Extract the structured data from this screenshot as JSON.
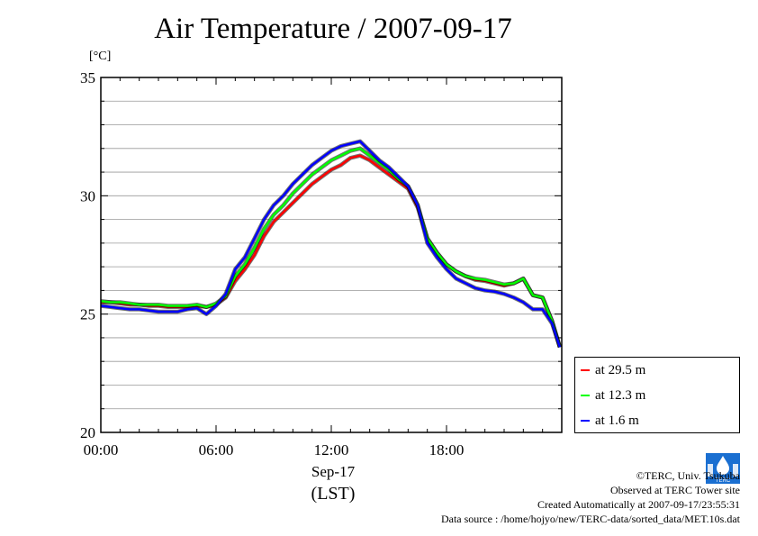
{
  "title": "Air Temperature / 2007-09-17",
  "chart_data": {
    "type": "line",
    "title": "Air Temperature / 2007-09-17",
    "ylabel": "[°C]",
    "xlabel_date": "Sep-17",
    "xlabel_zone": "(LST)",
    "ylim": [
      20,
      35
    ],
    "xlim": [
      0,
      24
    ],
    "y_ticks": [
      "35",
      "30",
      "25",
      "20"
    ],
    "y_tick_values": [
      35,
      30,
      25,
      20
    ],
    "x_ticks": [
      "00:00",
      "06:00",
      "12:00",
      "18:00"
    ],
    "x_tick_values": [
      0,
      6,
      12,
      18
    ],
    "grid": true,
    "legend_position": "bottom-right outside",
    "x_hours": [
      0.0,
      0.5,
      1.0,
      1.5,
      2.0,
      2.5,
      3.0,
      3.5,
      4.0,
      4.5,
      5.0,
      5.5,
      6.0,
      6.5,
      7.0,
      7.5,
      8.0,
      8.5,
      9.0,
      9.5,
      10.0,
      10.5,
      11.0,
      11.5,
      12.0,
      12.5,
      13.0,
      13.5,
      14.0,
      14.5,
      15.0,
      15.5,
      16.0,
      16.5,
      17.0,
      17.5,
      18.0,
      18.5,
      19.0,
      19.5,
      20.0,
      20.5,
      21.0,
      21.5,
      22.0,
      22.5,
      23.0,
      23.5,
      23.9
    ],
    "series": [
      {
        "name": "at 29.5 m",
        "color": "#ff0000",
        "values": [
          25.5,
          25.5,
          25.45,
          25.4,
          25.4,
          25.35,
          25.35,
          25.3,
          25.3,
          25.3,
          25.35,
          25.3,
          25.4,
          25.7,
          26.4,
          26.9,
          27.5,
          28.3,
          28.9,
          29.3,
          29.7,
          30.1,
          30.5,
          30.8,
          31.1,
          31.3,
          31.6,
          31.7,
          31.5,
          31.2,
          30.9,
          30.6,
          30.3,
          29.5,
          28.2,
          27.6,
          27.1,
          26.8,
          26.6,
          26.45,
          26.4,
          26.3,
          26.2,
          26.3,
          26.5,
          25.8,
          25.7,
          24.7,
          23.6
        ]
      },
      {
        "name": "at 12.3 m",
        "color": "#00ff00",
        "values": [
          25.55,
          25.5,
          25.5,
          25.45,
          25.4,
          25.4,
          25.4,
          25.35,
          25.35,
          25.35,
          25.4,
          25.3,
          25.45,
          25.75,
          26.6,
          27.1,
          27.8,
          28.6,
          29.2,
          29.6,
          30.1,
          30.5,
          30.9,
          31.2,
          31.5,
          31.7,
          31.9,
          32.0,
          31.7,
          31.4,
          31.1,
          30.7,
          30.4,
          29.6,
          28.2,
          27.6,
          27.1,
          26.8,
          26.6,
          26.5,
          26.45,
          26.35,
          26.25,
          26.3,
          26.5,
          25.8,
          25.7,
          24.7,
          23.6
        ]
      },
      {
        "name": "at 1.6 m",
        "color": "#0000ff",
        "values": [
          25.35,
          25.3,
          25.25,
          25.2,
          25.2,
          25.15,
          25.1,
          25.1,
          25.1,
          25.2,
          25.25,
          25.0,
          25.35,
          25.85,
          26.9,
          27.4,
          28.2,
          29.0,
          29.6,
          30.0,
          30.5,
          30.9,
          31.3,
          31.6,
          31.9,
          32.1,
          32.2,
          32.3,
          31.9,
          31.5,
          31.2,
          30.8,
          30.4,
          29.6,
          28.0,
          27.4,
          26.9,
          26.5,
          26.3,
          26.1,
          26.0,
          25.95,
          25.85,
          25.7,
          25.5,
          25.2,
          25.2,
          24.6,
          23.6
        ]
      }
    ]
  },
  "credits": {
    "copyright": "©TERC, Univ. Tsukuba",
    "observed": "Observed at TERC Tower site",
    "created": "Created Automatically at 2007-09-17/23:55:31",
    "source": "Data source : /home/hojyo/new/TERC-data/sorted_data/MET.10s.dat"
  },
  "logo_text": "TERC"
}
